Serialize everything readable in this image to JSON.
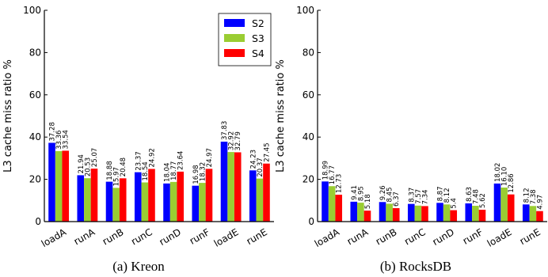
{
  "chart_data": [
    {
      "type": "bar",
      "caption": "(a)  Kreon",
      "ylabel": "L3 cache miss ratio %",
      "ylim": [
        0,
        100
      ],
      "yticks": [
        "0",
        "20",
        "40",
        "60",
        "80",
        "100"
      ],
      "categories": [
        "loadA",
        "runA",
        "runB",
        "runC",
        "runD",
        "runF",
        "loadE",
        "runE"
      ],
      "series": [
        {
          "name": "S2",
          "color": "#0000ff",
          "values": [
            37.28,
            21.94,
            18.88,
            23.37,
            18.04,
            16.98,
            37.83,
            24.23
          ],
          "labels": [
            "37.28",
            "21.94",
            "18.88",
            "23.37",
            "18.04",
            "16.98",
            "37.83",
            "24.23"
          ]
        },
        {
          "name": "S3",
          "color": "#9acd32",
          "values": [
            33.36,
            20.53,
            15.97,
            18.54,
            18.77,
            18.32,
            32.92,
            20.37
          ],
          "labels": [
            "33.36",
            "20.53",
            "15.97",
            "18.54",
            "18.77",
            "18.32",
            "32.92",
            "20.37"
          ]
        },
        {
          "name": "S4",
          "color": "#ff0000",
          "values": [
            33.54,
            25.07,
            20.48,
            24.92,
            23.64,
            24.97,
            32.79,
            27.45
          ],
          "labels": [
            "33.54",
            "25.07",
            "20.48",
            "24.92",
            "23.64",
            "24.97",
            "32.79",
            "27.45"
          ]
        }
      ],
      "legend": {
        "placement": "top-right",
        "entries": [
          "S2",
          "S3",
          "S4"
        ]
      },
      "grid": false
    },
    {
      "type": "bar",
      "caption": "(b)  RocksDB",
      "ylabel": "L3 cache miss ratio %",
      "ylim": [
        0,
        100
      ],
      "yticks": [
        "0",
        "20",
        "40",
        "60",
        "80",
        "100"
      ],
      "categories": [
        "loadA",
        "runA",
        "runB",
        "runC",
        "runD",
        "runF",
        "loadE",
        "runE"
      ],
      "series": [
        {
          "name": "S2",
          "color": "#0000ff",
          "values": [
            18.99,
            9.41,
            9.26,
            8.37,
            8.87,
            8.63,
            18.02,
            8.12
          ],
          "labels": [
            "18.99",
            "9.41",
            "9.26",
            "8.37",
            "8.87",
            "8.63",
            "18.02",
            "8.12"
          ]
        },
        {
          "name": "S3",
          "color": "#9acd32",
          "values": [
            16.77,
            8.95,
            8.45,
            7.57,
            8.12,
            7.48,
            16.1,
            7.38
          ],
          "labels": [
            "16.77",
            "8.95",
            "8.45",
            "7.57",
            "8.12",
            "7.48",
            "16.10",
            "7.38"
          ]
        },
        {
          "name": "S4",
          "color": "#ff0000",
          "values": [
            12.73,
            5.18,
            6.37,
            7.34,
            5.4,
            5.62,
            12.86,
            4.97
          ],
          "labels": [
            "12.73",
            "5.18",
            "6.37",
            "7.34",
            "5.4",
            "5.62",
            "12.86",
            "4.97"
          ]
        }
      ],
      "grid": false
    }
  ]
}
